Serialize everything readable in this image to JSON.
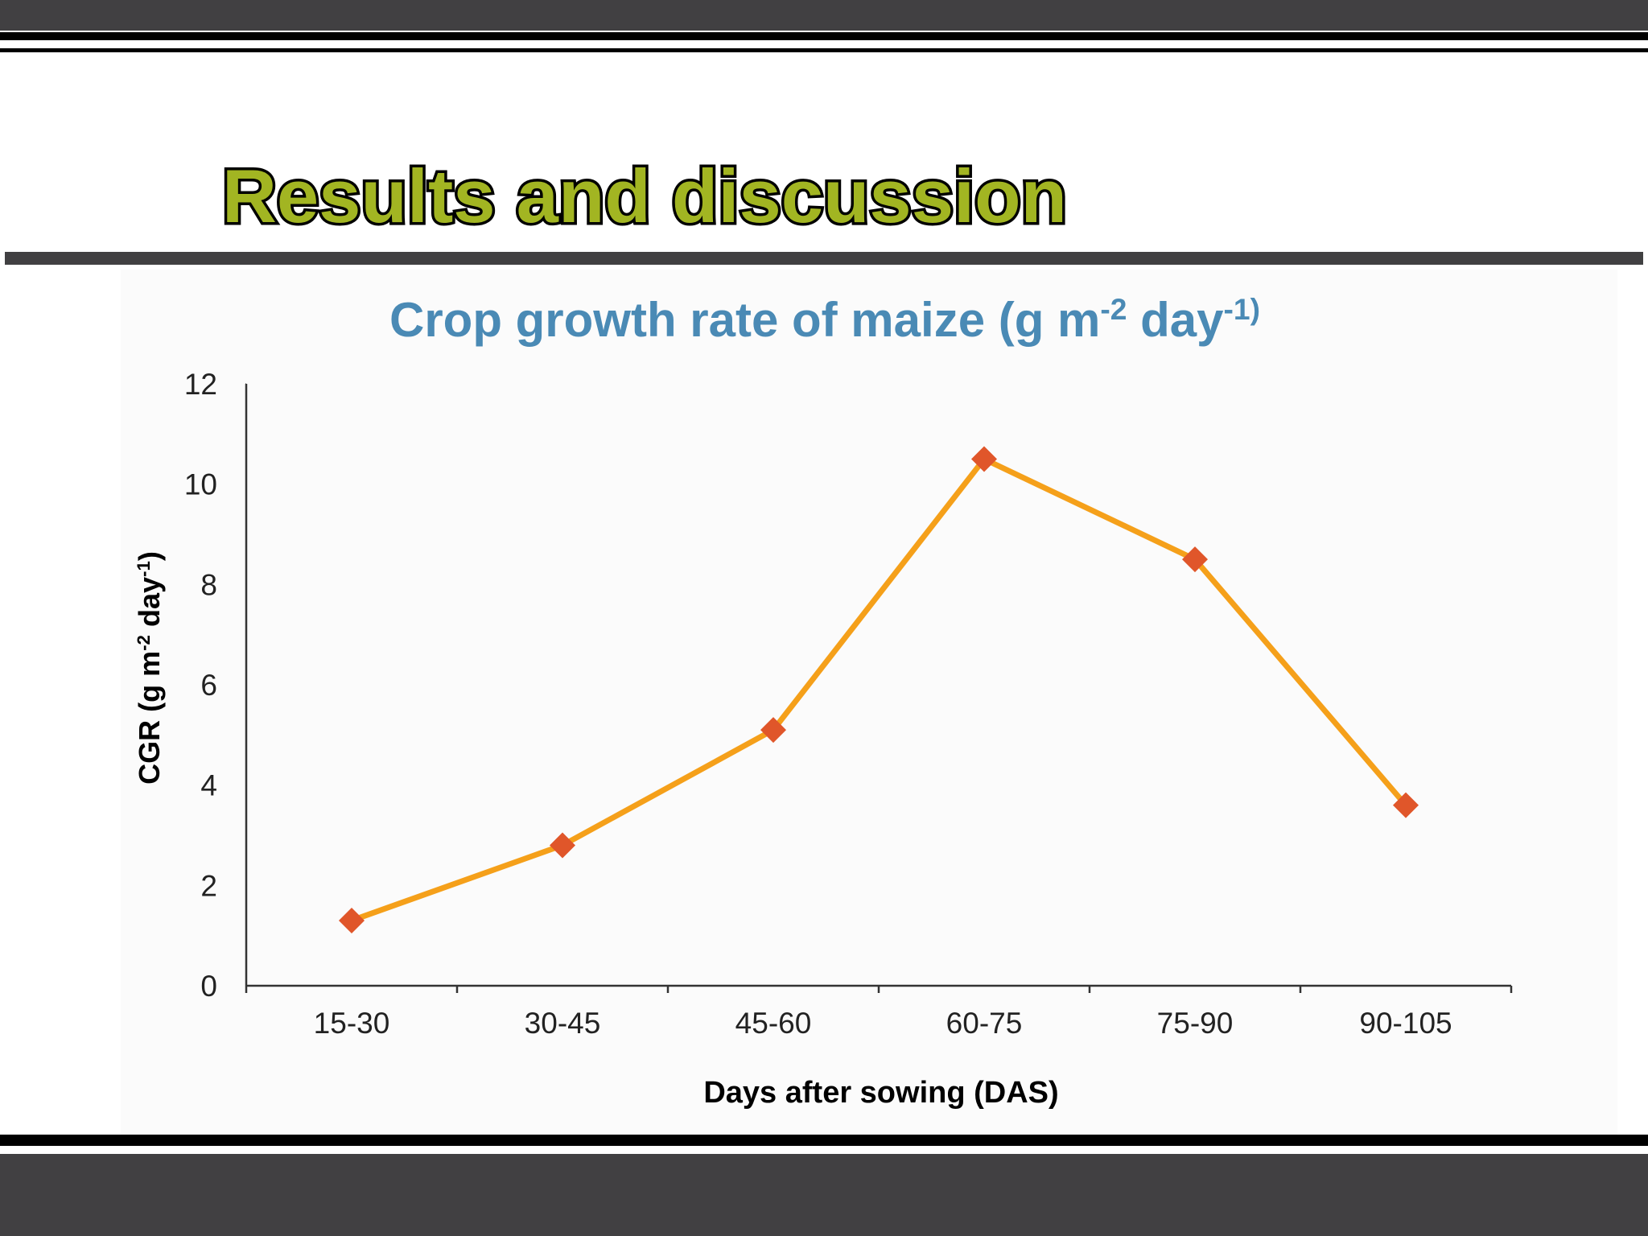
{
  "heading": "Results and discussion",
  "chart_data": {
    "type": "line",
    "title": [
      "Crop growth rate of maize (g m",
      "-2",
      " day",
      "-1)"
    ],
    "x_label": "Days after sowing (DAS)",
    "y_label": [
      "CGR (g m",
      "-2",
      " day",
      "-1",
      ")"
    ],
    "categories": [
      "15-30",
      "30-45",
      "45-60",
      "60-75",
      "75-90",
      "90-105"
    ],
    "values": [
      1.3,
      2.8,
      5.1,
      10.5,
      8.5,
      3.6
    ],
    "color": "#f5a01a",
    "marker_color": "#e0562a",
    "ylim": [
      0,
      12
    ],
    "yticks": [
      0,
      2,
      4,
      6,
      8,
      10,
      12
    ],
    "grid": false
  }
}
